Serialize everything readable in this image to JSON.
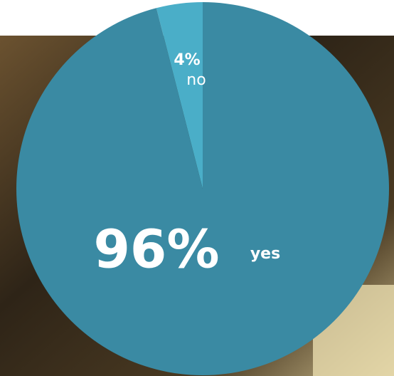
{
  "chart_data": {
    "type": "pie",
    "categories": [
      "no",
      "yes"
    ],
    "values": [
      4,
      96
    ],
    "value_labels": [
      "4%",
      "96%"
    ],
    "colors": [
      "#4aaec8",
      "#3a8aa3"
    ]
  }
}
